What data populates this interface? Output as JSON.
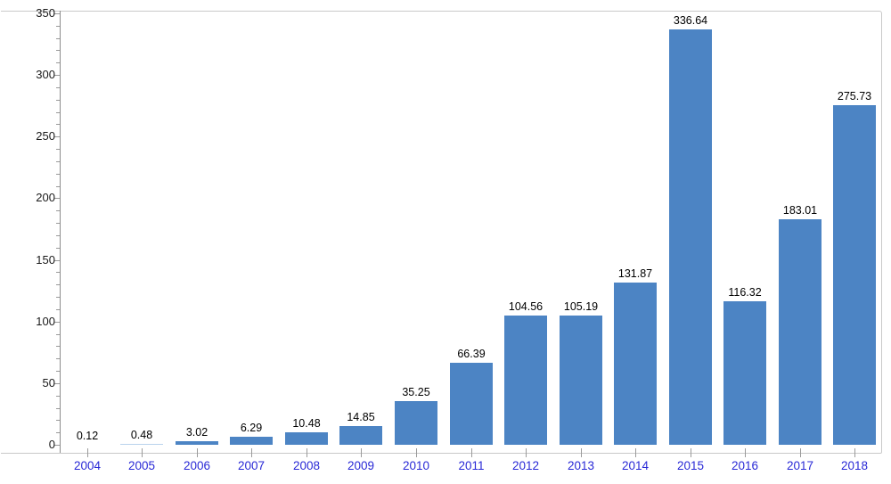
{
  "chart_data": {
    "type": "bar",
    "categories": [
      "2004",
      "2005",
      "2006",
      "2007",
      "2008",
      "2009",
      "2010",
      "2011",
      "2012",
      "2013",
      "2014",
      "2015",
      "2016",
      "2017",
      "2018"
    ],
    "values": [
      0.12,
      0.48,
      3.02,
      6.29,
      10.48,
      14.85,
      35.25,
      66.39,
      104.56,
      105.19,
      131.87,
      336.64,
      116.32,
      183.01,
      275.73
    ],
    "value_labels": [
      "0.12",
      "0.48",
      "3.02",
      "6.29",
      "10.48",
      "14.85",
      "35.25",
      "66.39",
      "104.56",
      "105.19",
      "131.87",
      "336.64",
      "116.32",
      "183.01",
      "275.73"
    ],
    "ylim": [
      0,
      350
    ],
    "ytick_interval": 50,
    "yminor_interval": 10,
    "ytick_labels": [
      "0",
      "50",
      "100",
      "150",
      "200",
      "250",
      "300",
      "350"
    ],
    "grid": false,
    "legend": null,
    "colors": {
      "bar": "#4c84c4",
      "bar_tiny": "#b9d3ec",
      "frame": "#c9c9c9",
      "axis_line": "#8c8c8c",
      "tick": "#9a9a9a",
      "value_label": "#000000",
      "ytick_label": "#1a1a1a",
      "xtick_label": "#2929d6"
    }
  }
}
